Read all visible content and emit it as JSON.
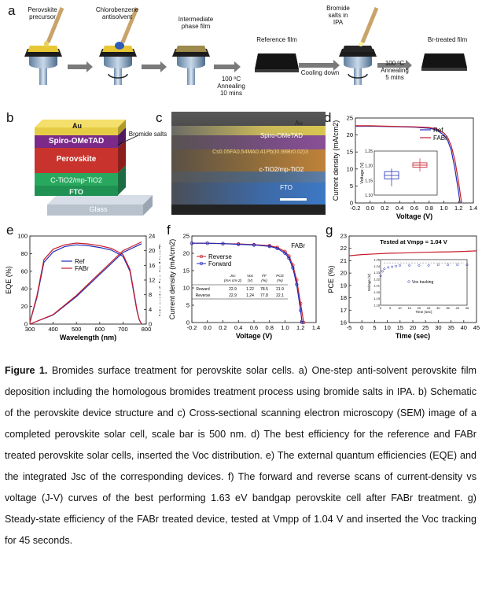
{
  "panel_a": {
    "letter": "a",
    "steps": [
      "Perovskite\nprecursor",
      "Chlorobenzene\nantisolvent",
      "Intermediate\nphase film",
      "Reference film",
      "100 ºC\nAnnealing\n10 mins",
      "Cooling down",
      "Bromide\nsalts in\nIPA",
      "100 ºC\nAnnealing\n5 mins",
      "Br-treated film"
    ]
  },
  "panel_b": {
    "letter": "b",
    "layers": [
      "Au",
      "Spiro-OMeTAD",
      "Perovskite",
      "C-TiO2/mp-TiO2",
      "FTO",
      "Glass"
    ],
    "annotation": "Bromide salts"
  },
  "panel_c": {
    "letter": "c",
    "labels": [
      "Au",
      "Spiro-OMeTAD",
      "Cs0.05FA0.54MA0.41Pb(I0.98Br0.02)3",
      "c-TiO2/mp-TiO2",
      "FTO"
    ]
  },
  "panel_d": {
    "letter": "d"
  },
  "panel_e": {
    "letter": "e"
  },
  "panel_f": {
    "letter": "f"
  },
  "panel_g": {
    "letter": "g"
  },
  "caption": {
    "title": "Figure 1.",
    "text": " Bromides surface treatment for perovskite solar cells. a) One-step anti-solvent perovskite film deposition including the homologous bromides treatment process using bromide salts in IPA. b) Schematic of the perovskite device structure and c) Cross-sectional scanning electron microscopy (SEM) image of a completed perovskite solar cell, scale bar is 500 nm. d) The best efficiency for the reference and FABr treated perovskite solar cells, inserted the Voc distribution. e) The external quantum efficiencies (EQE) and the integrated Jsc of the corresponding devices. f) The forward and reverse scans of current-density vs voltage (J-V) curves of the best performing 1.63 eV bandgap perovskite cell after FABr treatment. g) Steady-state efficiency of the FABr treated device, tested at Vmpp of 1.04 V and inserted the Voc tracking for 45 seconds."
  },
  "chart_data": [
    {
      "panel": "d",
      "type": "line",
      "xlabel": "Voltage (V)",
      "ylabel": "Current density (mA/cm2)",
      "xlim": [
        -0.2,
        1.4
      ],
      "ylim": [
        0,
        25
      ],
      "xticks": [
        "-0.2",
        "0.0",
        "0.2",
        "0.4",
        "0.6",
        "0.8",
        "1.0",
        "1.2",
        "1.4"
      ],
      "yticks": [
        "0",
        "5",
        "10",
        "15",
        "20",
        "25"
      ],
      "series": [
        {
          "name": "Ref",
          "color": "#1f2bb5",
          "x": [
            -0.2,
            0,
            0.2,
            0.4,
            0.6,
            0.8,
            0.9,
            1.0,
            1.05,
            1.1,
            1.15,
            1.2,
            1.22
          ],
          "y": [
            22.6,
            22.6,
            22.5,
            22.4,
            22.3,
            22.0,
            21.5,
            20.0,
            18.5,
            15.5,
            10.0,
            3.0,
            0
          ]
        },
        {
          "name": "FABr",
          "color": "#c81c2a",
          "x": [
            -0.2,
            0,
            0.2,
            0.4,
            0.6,
            0.8,
            0.9,
            1.0,
            1.05,
            1.1,
            1.15,
            1.2,
            1.24
          ],
          "y": [
            22.7,
            22.7,
            22.6,
            22.5,
            22.4,
            22.2,
            21.8,
            20.6,
            19.3,
            16.8,
            12.5,
            6.0,
            0
          ]
        }
      ],
      "inset": {
        "type": "box",
        "ylabel": "Voltage (V)",
        "ylim": [
          1.1,
          1.25
        ],
        "yticks": [
          "1.10",
          "1.15",
          "1.20",
          "1.25"
        ],
        "groups": [
          {
            "name": "Ref",
            "color": "#1f2bb5",
            "q1": 1.155,
            "median": 1.167,
            "q3": 1.18,
            "min": 1.13,
            "max": 1.19
          },
          {
            "name": "FABr",
            "color": "#c81c2a",
            "q1": 1.195,
            "median": 1.202,
            "q3": 1.21,
            "min": 1.18,
            "max": 1.225
          }
        ]
      }
    },
    {
      "panel": "e",
      "type": "line",
      "xlabel": "Wavelength (nm)",
      "ylabel": "EQE (%)",
      "ylabel_right": "Integrated Jsc (mA/cm2)",
      "xlim": [
        300,
        800
      ],
      "ylim": [
        0,
        100
      ],
      "ylim_right": [
        0,
        24
      ],
      "xticks": [
        "300",
        "400",
        "500",
        "600",
        "700",
        "800"
      ],
      "yticks": [
        "0",
        "20",
        "40",
        "60",
        "80",
        "100"
      ],
      "yticks_right": [
        "0",
        "4",
        "8",
        "12",
        "16",
        "20",
        "24"
      ],
      "series": [
        {
          "name": "Ref",
          "color": "#1f2bb5",
          "axis": "left",
          "x": [
            300,
            330,
            360,
            400,
            450,
            500,
            550,
            600,
            650,
            700,
            730,
            750,
            760,
            770,
            780
          ],
          "y": [
            2,
            30,
            70,
            82,
            88,
            90,
            89,
            87,
            84,
            77,
            60,
            30,
            15,
            5,
            0
          ]
        },
        {
          "name": "FABr",
          "color": "#c81c2a",
          "axis": "left",
          "x": [
            300,
            330,
            360,
            400,
            450,
            500,
            550,
            600,
            650,
            700,
            730,
            750,
            760,
            770,
            780
          ],
          "y": [
            2,
            32,
            73,
            85,
            90,
            92,
            91,
            89,
            86,
            79,
            62,
            32,
            16,
            5,
            0
          ]
        },
        {
          "name": "Ref Jsc",
          "color": "#1f2bb5",
          "axis": "right",
          "x": [
            300,
            400,
            500,
            600,
            700,
            780
          ],
          "y": [
            0,
            2.5,
            7.5,
            13.5,
            19.5,
            21.9
          ]
        },
        {
          "name": "FABr Jsc",
          "color": "#c81c2a",
          "axis": "right",
          "x": [
            300,
            400,
            500,
            600,
            700,
            780
          ],
          "y": [
            0,
            2.6,
            7.8,
            13.9,
            20.0,
            22.4
          ]
        }
      ]
    },
    {
      "panel": "f",
      "type": "line",
      "title": "FABr",
      "xlabel": "Voltage (V)",
      "ylabel": "Current density (mA/cm2)",
      "xlim": [
        -0.2,
        1.4
      ],
      "ylim": [
        0,
        25
      ],
      "xticks": [
        "-0.2",
        "0.0",
        "0.2",
        "0.4",
        "0.6",
        "0.8",
        "1.0",
        "1.2",
        "1.4"
      ],
      "yticks": [
        "0",
        "5",
        "10",
        "15",
        "20",
        "25"
      ],
      "series": [
        {
          "name": "Reverse",
          "color": "#c81c2a",
          "x": [
            -0.2,
            0,
            0.2,
            0.4,
            0.6,
            0.8,
            0.9,
            1.0,
            1.05,
            1.1,
            1.15,
            1.2,
            1.24
          ],
          "y": [
            22.9,
            22.9,
            22.8,
            22.7,
            22.5,
            22.2,
            21.7,
            20.5,
            19.2,
            16.6,
            12.3,
            5.5,
            0
          ]
        },
        {
          "name": "Forward",
          "color": "#1f2bb5",
          "x": [
            -0.2,
            0,
            0.2,
            0.4,
            0.6,
            0.8,
            0.9,
            1.0,
            1.05,
            1.1,
            1.15,
            1.2,
            1.22
          ],
          "y": [
            22.9,
            22.9,
            22.8,
            22.6,
            22.4,
            22.0,
            21.4,
            20.0,
            18.6,
            15.8,
            11.0,
            3.5,
            0
          ]
        }
      ],
      "table": {
        "headers": [
          "",
          "Jsc\n(mA cm-2)",
          "Voc\n(V)",
          "FF\n(%)",
          "PCE\n(%)"
        ],
        "rows": [
          [
            "Reward",
            "22.9",
            "1.22",
            "78.5",
            "21.9"
          ],
          [
            "Reverse",
            "22.9",
            "1.24",
            "77.8",
            "22.1"
          ]
        ]
      }
    },
    {
      "panel": "g",
      "type": "line",
      "title": "Tested at Vmpp = 1.04 V",
      "xlabel": "Time (sec)",
      "ylabel": "PCE (%)",
      "xlim": [
        -5,
        45
      ],
      "ylim": [
        16,
        23
      ],
      "xticks": [
        "-5",
        "0",
        "5",
        "10",
        "15",
        "20",
        "25",
        "30",
        "35",
        "40",
        "45"
      ],
      "yticks": [
        "16",
        "17",
        "18",
        "19",
        "20",
        "21",
        "22",
        "23"
      ],
      "series": [
        {
          "name": "PCE",
          "color": "#c81c2a",
          "x": [
            -5,
            0,
            5,
            10,
            15,
            20,
            25,
            30,
            35,
            40,
            45
          ],
          "y": [
            21.4,
            21.5,
            21.55,
            21.6,
            21.62,
            21.65,
            21.68,
            21.7,
            21.72,
            21.75,
            21.8
          ]
        }
      ],
      "inset": {
        "type": "line",
        "xlabel": "Time (sec)",
        "ylabel": "Voltage (V)",
        "legend": "Voc tracking",
        "xlim": [
          0,
          45
        ],
        "ylim": [
          1.18,
          1.25
        ],
        "xticks": [
          "0",
          "5",
          "10",
          "15",
          "20",
          "25",
          "30",
          "35",
          "40",
          "45"
        ],
        "yticks": [
          "1.18",
          "1.19",
          "1.20",
          "1.21",
          "1.22",
          "1.23",
          "1.24",
          "1.25"
        ],
        "series": [
          {
            "name": "Voc",
            "color": "#1f2bb5",
            "x": [
              0,
              1,
              2,
              4,
              6,
              8,
              10,
              15,
              20,
              25,
              30,
              35,
              40,
              45
            ],
            "y": [
              1.225,
              1.232,
              1.236,
              1.238,
              1.239,
              1.24,
              1.241,
              1.241,
              1.241,
              1.241,
              1.242,
              1.242,
              1.242,
              1.242
            ]
          }
        ]
      }
    }
  ]
}
